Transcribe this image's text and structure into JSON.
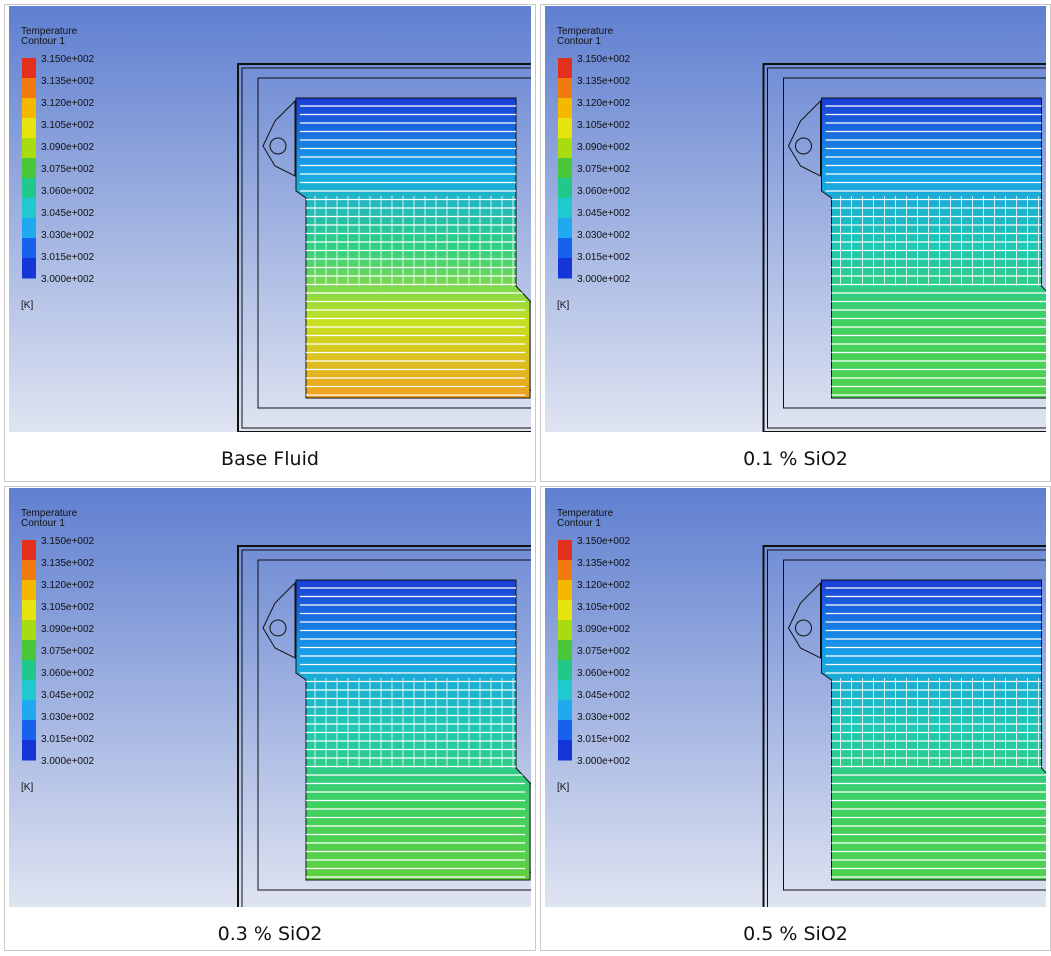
{
  "panels": [
    {
      "legend_title": "Temperature",
      "legend_subtitle": "Contour 1",
      "legend_labels": [
        "3.150e+002",
        "3.135e+002",
        "3.120e+002",
        "3.105e+002",
        "3.090e+002",
        "3.075e+002",
        "3.060e+002",
        "3.045e+002",
        "3.030e+002",
        "3.015e+002",
        "3.000e+002"
      ],
      "unit": "[K]",
      "caption": "Base Fluid"
    },
    {
      "legend_title": "Temperature",
      "legend_subtitle": "Contour 1",
      "legend_labels": [
        "3.150e+002",
        "3.135e+002",
        "3.120e+002",
        "3.105e+002",
        "3.090e+002",
        "3.075e+002",
        "3.060e+002",
        "3.045e+002",
        "3.030e+002",
        "3.015e+002",
        "3.000e+002"
      ],
      "unit": "[K]",
      "caption": "0.1 % SiO2"
    },
    {
      "legend_title": "Temperature",
      "legend_subtitle": "Contour 1",
      "legend_labels": [
        "3.150e+002",
        "3.135e+002",
        "3.120e+002",
        "3.105e+002",
        "3.090e+002",
        "3.075e+002",
        "3.060e+002",
        "3.045e+002",
        "3.030e+002",
        "3.015e+002",
        "3.000e+002"
      ],
      "unit": "[K]",
      "caption": "0.3 % SiO2"
    },
    {
      "legend_title": "Temperature",
      "legend_subtitle": "Contour 1",
      "legend_labels": [
        "3.150e+002",
        "3.135e+002",
        "3.120e+002",
        "3.105e+002",
        "3.090e+002",
        "3.075e+002",
        "3.060e+002",
        "3.045e+002",
        "3.030e+002",
        "3.015e+002",
        "3.000e+002"
      ],
      "unit": "[K]",
      "caption": "0.5 % SiO2"
    }
  ]
}
